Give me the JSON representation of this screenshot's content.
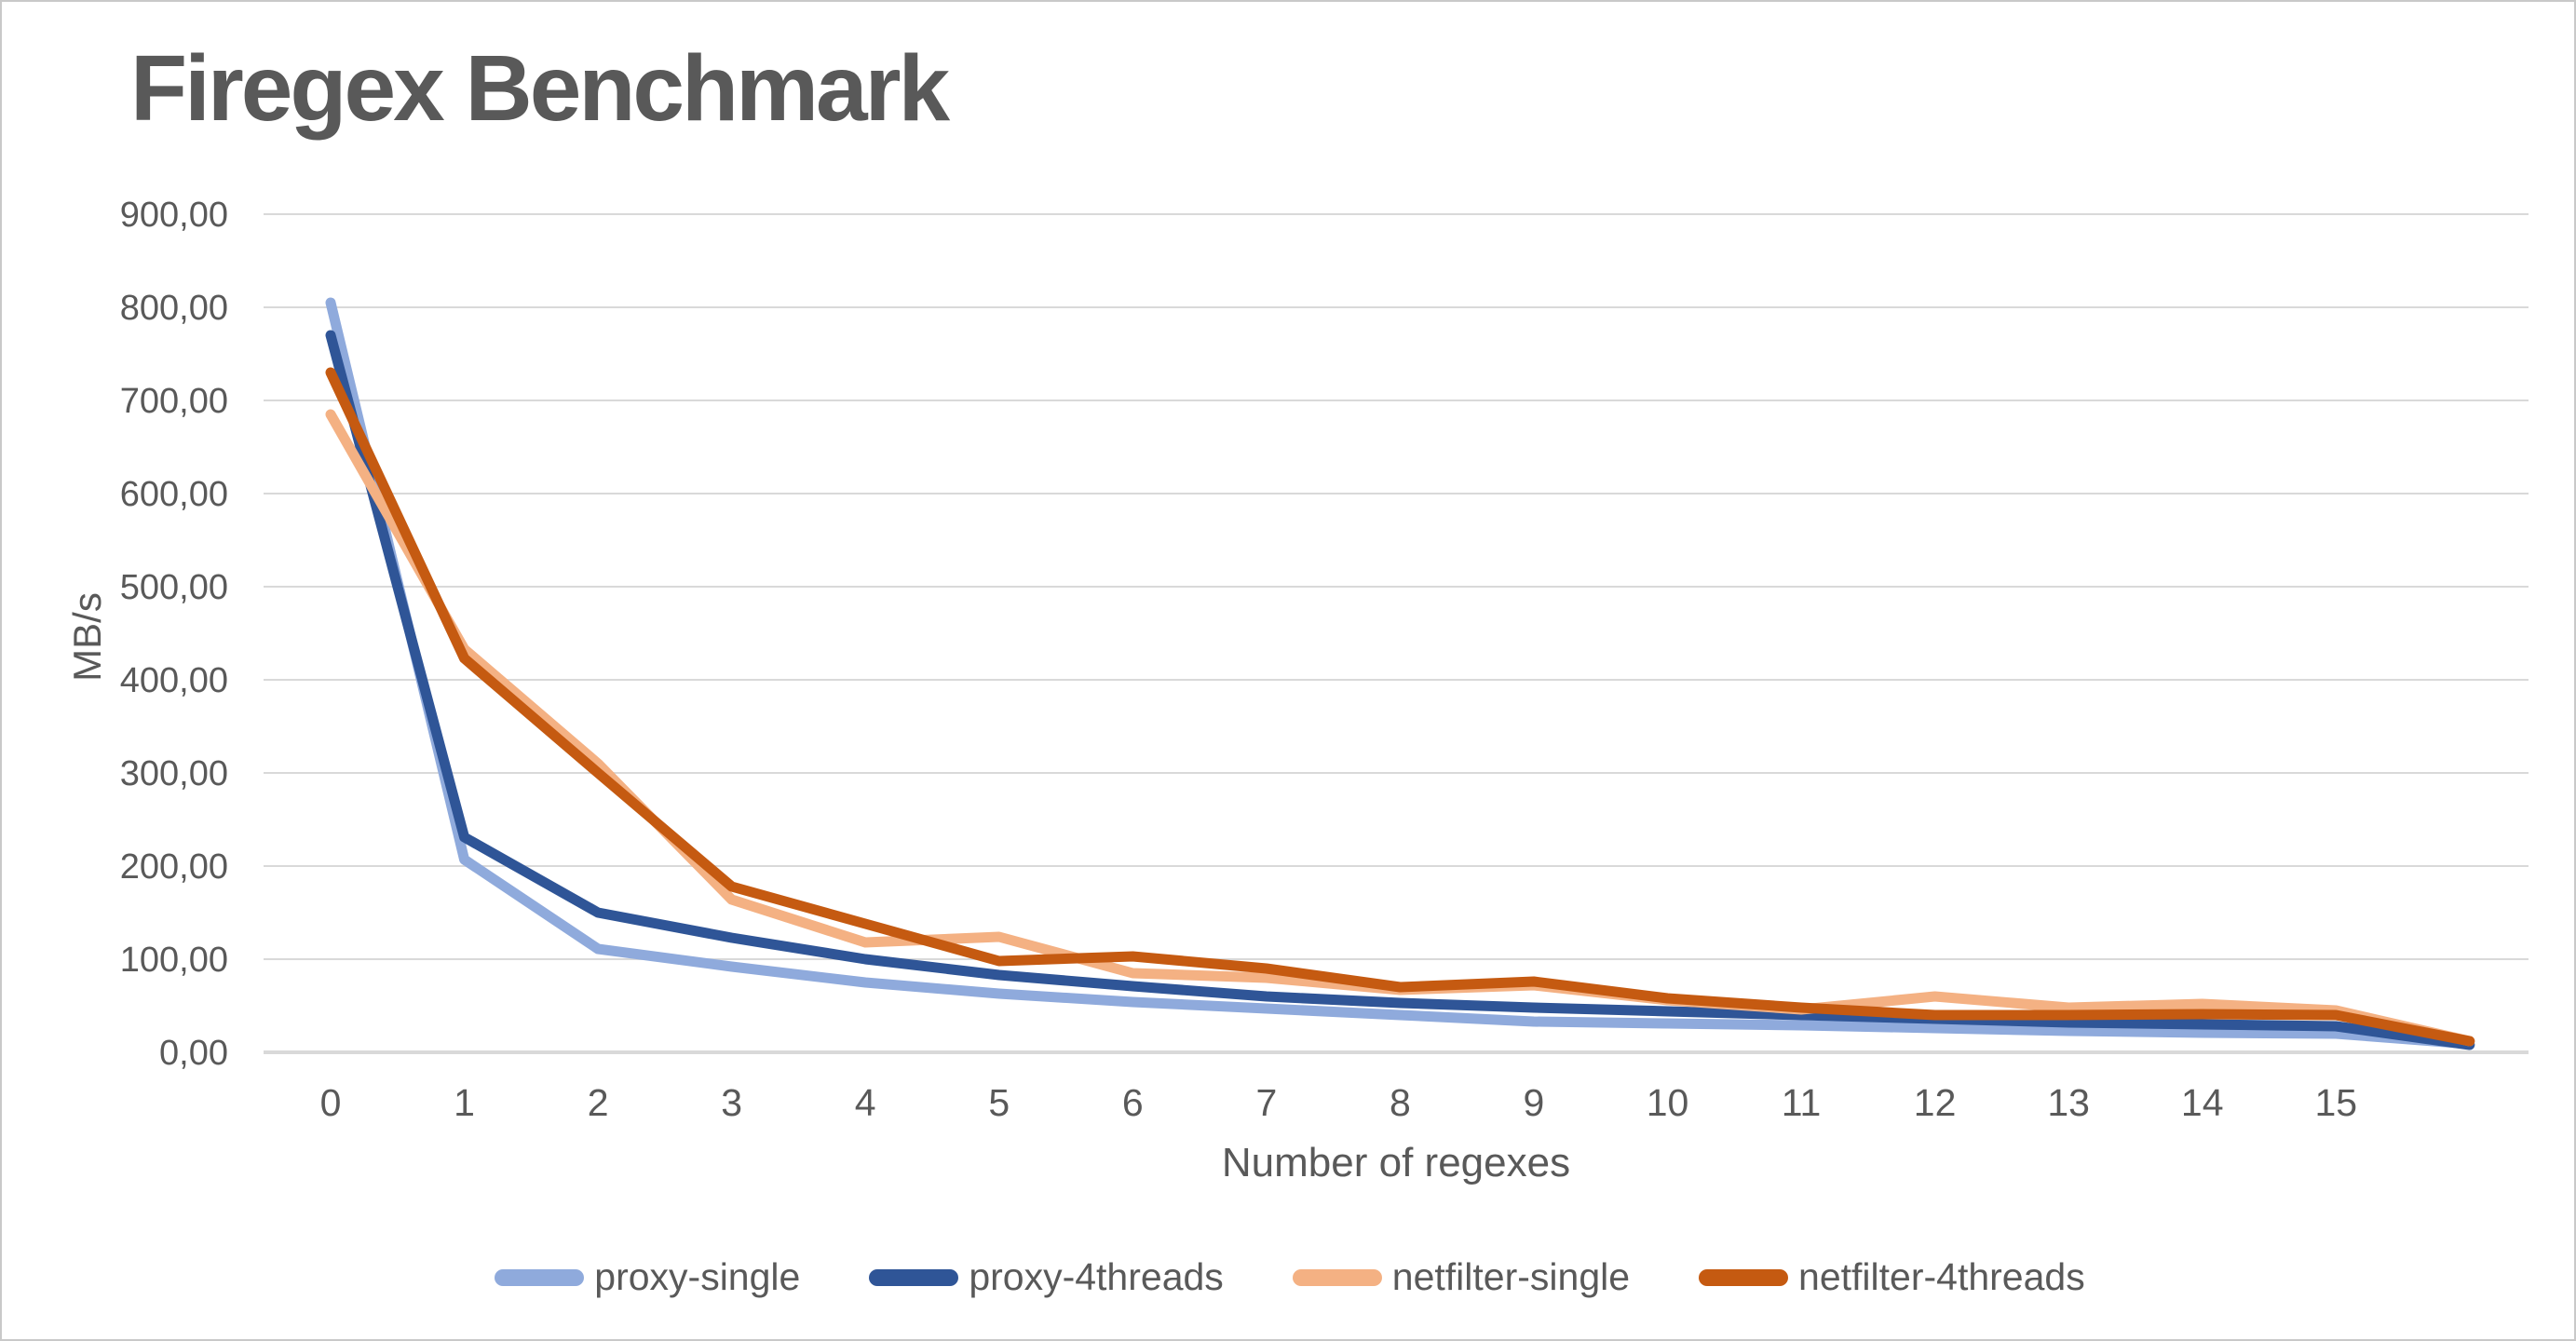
{
  "chart": {
    "title": "Firegex Benchmark",
    "xlabel": "Number of regexes",
    "ylabel": "MB/s"
  },
  "chart_data": {
    "type": "line",
    "title": "Firegex Benchmark",
    "xlabel": "Number of regexes",
    "ylabel": "MB/s",
    "ylim": [
      0,
      900
    ],
    "ytick_step": 100,
    "ytick_labels": [
      "0,00",
      "100,00",
      "200,00",
      "300,00",
      "400,00",
      "500,00",
      "600,00",
      "700,00",
      "800,00",
      "900,00"
    ],
    "categories": [
      "0",
      "1",
      "2",
      "3",
      "4",
      "5",
      "6",
      "7",
      "8",
      "9",
      "10",
      "11",
      "12",
      "13",
      "14",
      "15",
      ""
    ],
    "grid": "horizontal",
    "gridline_color": "#D9D9D9",
    "axis_line_color": "#D9D9D9",
    "tick_label_color": "#595959",
    "legend_position": "bottom",
    "series": [
      {
        "name": "proxy-single",
        "color": "#8FAADC",
        "values": [
          805,
          207,
          111,
          92,
          75,
          63,
          54,
          47,
          40,
          33,
          31,
          29,
          26,
          23,
          21,
          20,
          9
        ]
      },
      {
        "name": "proxy-4threads",
        "color": "#2F5597",
        "values": [
          770,
          231,
          150,
          123,
          100,
          83,
          71,
          60,
          53,
          48,
          44,
          40,
          36,
          32,
          30,
          28,
          8
        ]
      },
      {
        "name": "netfilter-single",
        "color": "#F4B183",
        "values": [
          685,
          433,
          310,
          164,
          118,
          124,
          85,
          80,
          67,
          72,
          56,
          46,
          60,
          48,
          52,
          45,
          12
        ]
      },
      {
        "name": "netfilter-4threads",
        "color": "#C55A11",
        "values": [
          730,
          423,
          300,
          178,
          138,
          98,
          103,
          90,
          70,
          76,
          58,
          48,
          40,
          40,
          41,
          40,
          12
        ]
      }
    ]
  }
}
